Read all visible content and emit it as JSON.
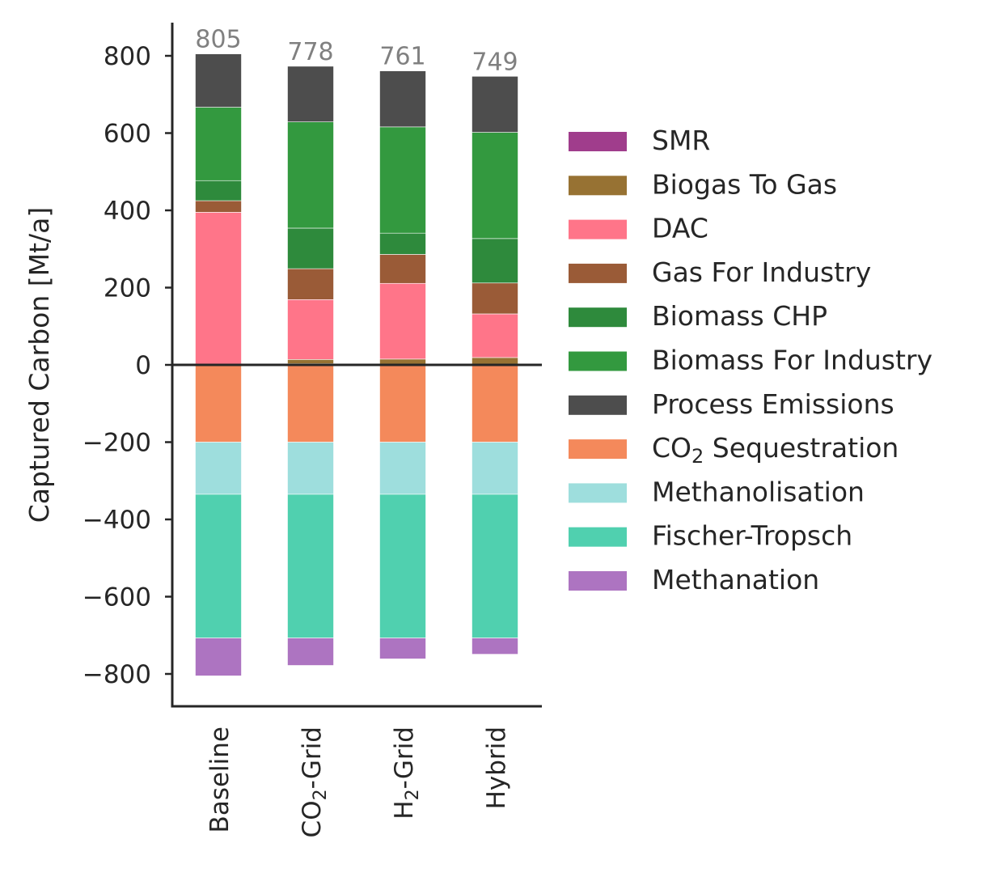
{
  "chart_data": {
    "type": "bar",
    "stacked": true,
    "ylabel": "Captured Carbon [Mt/a]",
    "ylim": [
      -890,
      890
    ],
    "yticks": [
      800,
      600,
      400,
      200,
      0,
      -200,
      -400,
      -600,
      -800
    ],
    "ytick_labels": [
      "800",
      "600",
      "400",
      "200",
      "0",
      "−200",
      "−400",
      "−600",
      "−800"
    ],
    "categories": [
      {
        "label": "Baseline",
        "sub": "",
        "post": ""
      },
      {
        "label": "CO",
        "sub": "2",
        "post": "-Grid"
      },
      {
        "label": "H",
        "sub": "2",
        "post": "-Grid"
      },
      {
        "label": "Hybrid",
        "sub": "",
        "post": ""
      }
    ],
    "totals": [
      "805",
      "778",
      "761",
      "749"
    ],
    "grid": false,
    "legend_position": "right",
    "series": [
      {
        "name": "SMR",
        "color": "#a03d8c",
        "values": [
          1,
          3,
          0,
          0
        ]
      },
      {
        "name": "Biogas To Gas",
        "color": "#977233",
        "values": [
          1,
          11,
          15,
          19
        ]
      },
      {
        "name": "DAC",
        "color": "#ff7589",
        "values": [
          393,
          155,
          196,
          113
        ]
      },
      {
        "name": "Gas For Industry",
        "color": "#9a5b37",
        "values": [
          30,
          80,
          75,
          80
        ]
      },
      {
        "name": "Biomass CHP",
        "color": "#2e8a3c",
        "values": [
          52,
          105,
          55,
          115
        ]
      },
      {
        "name": "Biomass For Industry",
        "color": "#33993f",
        "values": [
          190,
          275,
          275,
          275
        ]
      },
      {
        "name": "Process Emissions",
        "color": "#4d4d4d",
        "values": [
          138,
          144,
          145,
          145
        ]
      },
      {
        "name": "CO",
        "name_sub": "2",
        "name_post": " Sequestration",
        "color": "#f4895b",
        "values": [
          -200,
          -200,
          -200,
          -200
        ]
      },
      {
        "name": "Methanolisation",
        "color": "#9ededd",
        "values": [
          -135,
          -135,
          -135,
          -135
        ]
      },
      {
        "name": "Fischer-Tropsch",
        "color": "#50d0af",
        "values": [
          -372,
          -372,
          -372,
          -372
        ]
      },
      {
        "name": "Methanation",
        "color": "#ad74c1",
        "values": [
          -98,
          -71,
          -54,
          -42
        ]
      }
    ]
  }
}
